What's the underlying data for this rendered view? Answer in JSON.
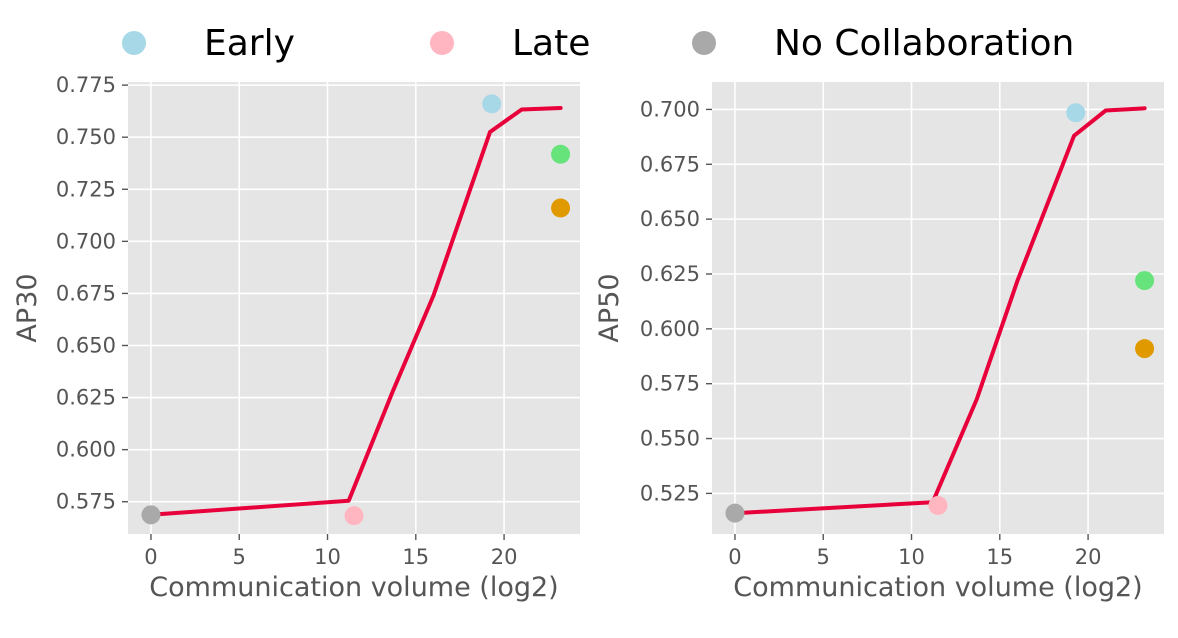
{
  "legend": {
    "items": [
      {
        "label": "Early",
        "color": "#a6d8e8"
      },
      {
        "label": "Late",
        "color": "#ffb6c1"
      },
      {
        "label": "No Collaboration",
        "color": "#a9a9a9"
      }
    ]
  },
  "chart_data": [
    {
      "type": "scatter",
      "title": "",
      "xlabel": "Communication volume (log2)",
      "ylabel": "AP30",
      "xlim": [
        -1.3,
        24.3
      ],
      "ylim": [
        0.5595,
        0.7765
      ],
      "xticks": [
        0,
        5,
        10,
        15,
        20
      ],
      "yticks": [
        0.575,
        0.6,
        0.625,
        0.65,
        0.675,
        0.7,
        0.725,
        0.75,
        0.775
      ],
      "ytick_labels": [
        "0.575",
        "0.600",
        "0.625",
        "0.650",
        "0.675",
        "0.700",
        "0.725",
        "0.750",
        "0.775"
      ],
      "grid": true,
      "line": {
        "color": "#e8003a",
        "x": [
          0,
          11.2,
          13.7,
          16.0,
          19.2,
          21.0,
          23.2
        ],
        "y": [
          0.5687,
          0.5755,
          0.628,
          0.674,
          0.7525,
          0.7633,
          0.764
        ]
      },
      "points": [
        {
          "x": 0,
          "y": 0.5687,
          "color": "#a9a9a9"
        },
        {
          "x": 11.5,
          "y": 0.5683,
          "color": "#ffb6c1"
        },
        {
          "x": 19.3,
          "y": 0.766,
          "color": "#a6d8e8"
        },
        {
          "x": 23.2,
          "y": 0.7418,
          "color": "#66e37a"
        },
        {
          "x": 23.2,
          "y": 0.716,
          "color": "#e09a00"
        }
      ]
    },
    {
      "type": "scatter",
      "title": "",
      "xlabel": "Communication volume (log2)",
      "ylabel": "AP50",
      "xlim": [
        -1.3,
        24.3
      ],
      "ylim": [
        0.5065,
        0.7125
      ],
      "xticks": [
        0,
        5,
        10,
        15,
        20
      ],
      "yticks": [
        0.525,
        0.55,
        0.575,
        0.6,
        0.625,
        0.65,
        0.675,
        0.7
      ],
      "ytick_labels": [
        "0.525",
        "0.550",
        "0.575",
        "0.600",
        "0.625",
        "0.650",
        "0.675",
        "0.700"
      ],
      "grid": true,
      "line": {
        "color": "#e8003a",
        "x": [
          0,
          11.2,
          13.7,
          16.0,
          19.2,
          21.0,
          23.2
        ],
        "y": [
          0.516,
          0.521,
          0.568,
          0.622,
          0.688,
          0.6995,
          0.7005
        ]
      },
      "points": [
        {
          "x": 0,
          "y": 0.516,
          "color": "#a9a9a9"
        },
        {
          "x": 11.5,
          "y": 0.5195,
          "color": "#ffb6c1"
        },
        {
          "x": 19.3,
          "y": 0.6985,
          "color": "#a6d8e8"
        },
        {
          "x": 23.2,
          "y": 0.622,
          "color": "#66e37a"
        },
        {
          "x": 23.2,
          "y": 0.591,
          "color": "#e09a00"
        }
      ]
    }
  ]
}
